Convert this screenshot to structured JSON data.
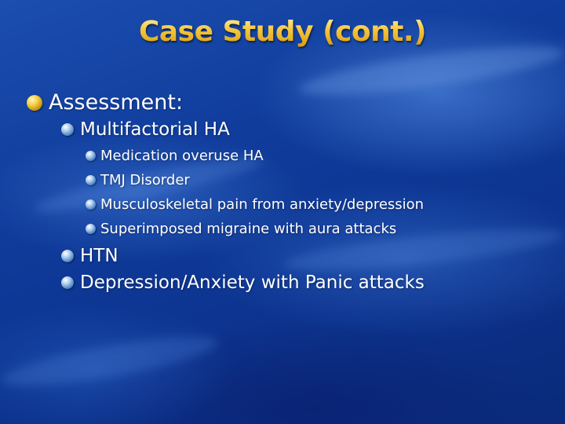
{
  "slide": {
    "title": "Case Study (cont.)",
    "colors": {
      "background": "#0d3592",
      "title": "#f4c53c",
      "text": "#ffffff",
      "bullet_level1": "#f4c53c",
      "bullet_level2": "#4f86c8"
    },
    "bullets": [
      {
        "level": 1,
        "text": "Assessment:",
        "icon": "gold-sphere-bullet-icon"
      },
      {
        "level": 2,
        "text": "Multifactorial HA",
        "icon": "blue-sphere-bullet-icon"
      },
      {
        "level": 3,
        "text": "Medication overuse HA",
        "icon": "blue-sphere-bullet-icon"
      },
      {
        "level": 3,
        "text": "TMJ Disorder",
        "icon": "blue-sphere-bullet-icon"
      },
      {
        "level": 3,
        "text": "Musculoskeletal pain from anxiety/depression",
        "icon": "blue-sphere-bullet-icon"
      },
      {
        "level": 3,
        "text": "Superimposed migraine with aura attacks",
        "icon": "blue-sphere-bullet-icon"
      },
      {
        "level": 2,
        "text": "HTN",
        "icon": "blue-sphere-bullet-icon"
      },
      {
        "level": 2,
        "text": "Depression/Anxiety with Panic attacks",
        "icon": "blue-sphere-bullet-icon"
      }
    ]
  }
}
